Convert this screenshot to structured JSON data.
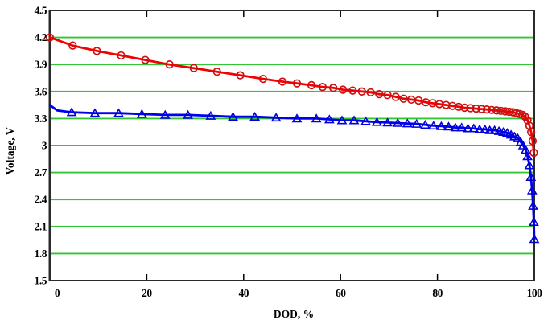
{
  "chart_data": {
    "type": "line",
    "title": "",
    "xlabel": "DOD, %",
    "ylabel": "Voltage, V",
    "xlim": [
      0,
      100
    ],
    "ylim": [
      1.5,
      4.5
    ],
    "x_ticks": [
      0,
      20,
      40,
      60,
      80,
      100
    ],
    "x_tick_labels": [
      "0",
      "20",
      "40",
      "60",
      "80",
      "100"
    ],
    "y_ticks": [
      4.5,
      4.2,
      3.9,
      3.6,
      3.3,
      3.0,
      2.7,
      2.4,
      2.1,
      1.8,
      1.5
    ],
    "y_tick_labels": [
      "4.5",
      "4.2",
      "3.9",
      "3.6",
      "3.3",
      "3",
      "2.7",
      "2.4",
      "2.1",
      "1.8",
      "1.5"
    ],
    "grid": "horizontal",
    "grid_color": "#35c435",
    "axis_color": "#2b2b2b",
    "background_color": "#ffffff",
    "legend": "none",
    "series": [
      {
        "name": "red-circle-series",
        "marker": "circle",
        "line_color": "#f40000",
        "marker_color": "#cc1111",
        "marker_start_index": 0,
        "x": [
          0,
          4.7,
          9.7,
          14.7,
          19.7,
          24.7,
          29.7,
          34.5,
          39.3,
          44,
          48,
          51,
          54,
          56.3,
          58.5,
          60.5,
          62.5,
          64.4,
          66.2,
          68,
          69.7,
          71.4,
          73,
          74.6,
          76.1,
          77.6,
          79,
          80.4,
          81.8,
          83.1,
          84.4,
          85.6,
          86.8,
          88,
          89.1,
          90.2,
          91.2,
          92.2,
          93.1,
          94,
          94.8,
          95.6,
          96.3,
          97,
          97.6,
          98.1,
          98.6,
          99,
          99.35,
          99.65,
          99.9
        ],
        "y": [
          4.2,
          4.11,
          4.05,
          4.0,
          3.95,
          3.9,
          3.86,
          3.82,
          3.78,
          3.74,
          3.71,
          3.69,
          3.67,
          3.65,
          3.64,
          3.62,
          3.61,
          3.6,
          3.59,
          3.57,
          3.56,
          3.54,
          3.52,
          3.51,
          3.5,
          3.48,
          3.47,
          3.46,
          3.45,
          3.44,
          3.43,
          3.42,
          3.415,
          3.41,
          3.405,
          3.4,
          3.395,
          3.39,
          3.385,
          3.38,
          3.375,
          3.37,
          3.36,
          3.35,
          3.34,
          3.32,
          3.28,
          3.22,
          3.15,
          3.05,
          2.92
        ]
      },
      {
        "name": "blue-triangle-series",
        "marker": "triangle",
        "line_color": "#0000f0",
        "marker_color": "#0000d8",
        "marker_start_index": 2,
        "x": [
          0,
          1.5,
          4.5,
          9.3,
          14.2,
          19,
          23.8,
          28.5,
          33.2,
          37.8,
          42.3,
          46.7,
          51,
          55,
          57.7,
          60.3,
          62.8,
          65.2,
          67.5,
          69.7,
          71.8,
          73.8,
          75.7,
          77.5,
          79.2,
          80.8,
          82.3,
          83.7,
          85,
          86.3,
          87.5,
          88.7,
          89.8,
          90.8,
          91.8,
          92.7,
          93.6,
          94.4,
          95.2,
          95.9,
          96.6,
          97.2,
          97.7,
          98.2,
          98.6,
          99,
          99.3,
          99.55,
          99.75,
          99.9,
          100
        ],
        "y": [
          3.45,
          3.39,
          3.37,
          3.36,
          3.36,
          3.35,
          3.34,
          3.34,
          3.33,
          3.32,
          3.32,
          3.31,
          3.3,
          3.3,
          3.29,
          3.28,
          3.28,
          3.27,
          3.26,
          3.255,
          3.25,
          3.245,
          3.24,
          3.23,
          3.22,
          3.215,
          3.21,
          3.2,
          3.2,
          3.19,
          3.19,
          3.18,
          3.18,
          3.17,
          3.17,
          3.16,
          3.15,
          3.14,
          3.12,
          3.1,
          3.08,
          3.04,
          3.0,
          2.95,
          2.88,
          2.78,
          2.65,
          2.5,
          2.33,
          2.15,
          1.96
        ]
      }
    ]
  }
}
